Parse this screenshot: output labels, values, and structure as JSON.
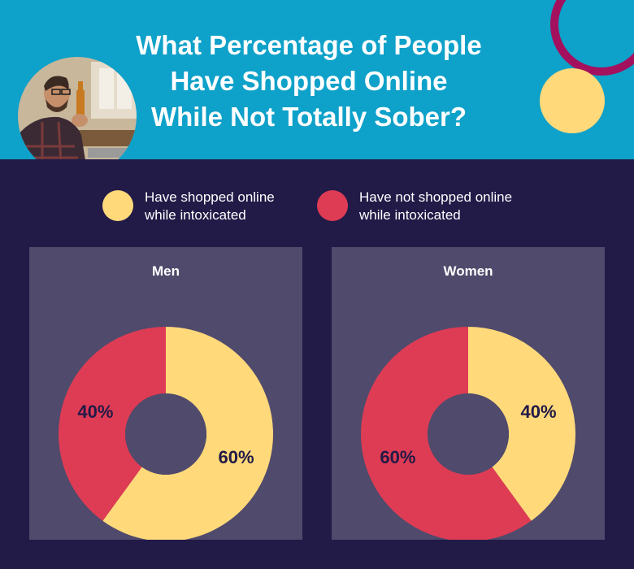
{
  "title_lines": [
    "What Percentage of People",
    "Have Shopped Online",
    "While Not Totally Sober?"
  ],
  "colors": {
    "header_bg": "#0ea1c9",
    "body_bg": "#221a47",
    "panel_bg": "#504a6c",
    "shopped": "#ffd97a",
    "not_shopped": "#de3c54",
    "label_text": "#221a47",
    "accent_ring": "#a3115e"
  },
  "legend": [
    {
      "label": "Have shopped online while intoxicated",
      "color": "#ffd97a"
    },
    {
      "label": "Have not shopped online while intoxicated",
      "color": "#de3c54"
    }
  ],
  "chart_data": [
    {
      "type": "pie",
      "title": "Men",
      "slices": [
        {
          "label": "Have shopped online while intoxicated",
          "value": 60,
          "display": "60%"
        },
        {
          "label": "Have not shopped online while intoxicated",
          "value": 40,
          "display": "40%"
        }
      ]
    },
    {
      "type": "pie",
      "title": "Women",
      "slices": [
        {
          "label": "Have shopped online while intoxicated",
          "value": 40,
          "display": "40%"
        },
        {
          "label": "Have not shopped online while intoxicated",
          "value": 60,
          "display": "60%"
        }
      ]
    }
  ]
}
